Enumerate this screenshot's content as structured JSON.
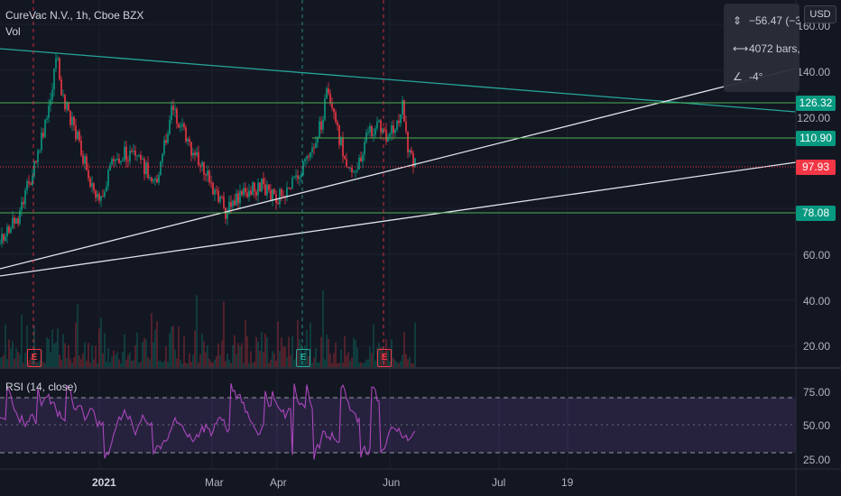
{
  "header": {
    "symbol_line": "CureVac N.V., 1h, Cboe BZX",
    "volume_label": "Vol"
  },
  "currency_button": "USD",
  "measure_box": {
    "price_change": "−56.47 (−3",
    "bars": "4072 bars,",
    "angle": "-4°"
  },
  "price_axis": {
    "ticks": [
      "160.00",
      "140.00",
      "120.00",
      "60.00",
      "40.00",
      "20.00"
    ]
  },
  "price_tags": [
    {
      "label": "126.32",
      "color": "#089981"
    },
    {
      "label": "110.90",
      "color": "#089981"
    },
    {
      "label": "97.93",
      "color": "#f23645"
    },
    {
      "label": "78.08",
      "color": "#089981"
    }
  ],
  "rsi": {
    "label": "RSI (14, close)",
    "ticks": [
      "75.00",
      "50.00",
      "25.00"
    ],
    "upper": 70,
    "lower": 30,
    "color": "#ab47bc"
  },
  "time_axis": {
    "labels": [
      "2021",
      "Mar",
      "Apr",
      "Jun",
      "Jul",
      "19"
    ]
  },
  "earnings_markers": [
    {
      "label": "E",
      "kind": "past"
    },
    {
      "label": "E",
      "kind": "upcoming"
    },
    {
      "label": "E",
      "kind": "past"
    }
  ],
  "colors": {
    "background": "#131722",
    "up": "#089981",
    "down": "#f23645",
    "horizontal_line": "#4caf50",
    "trend_teal": "#26a69a",
    "trend_white": "#ffffff"
  }
}
